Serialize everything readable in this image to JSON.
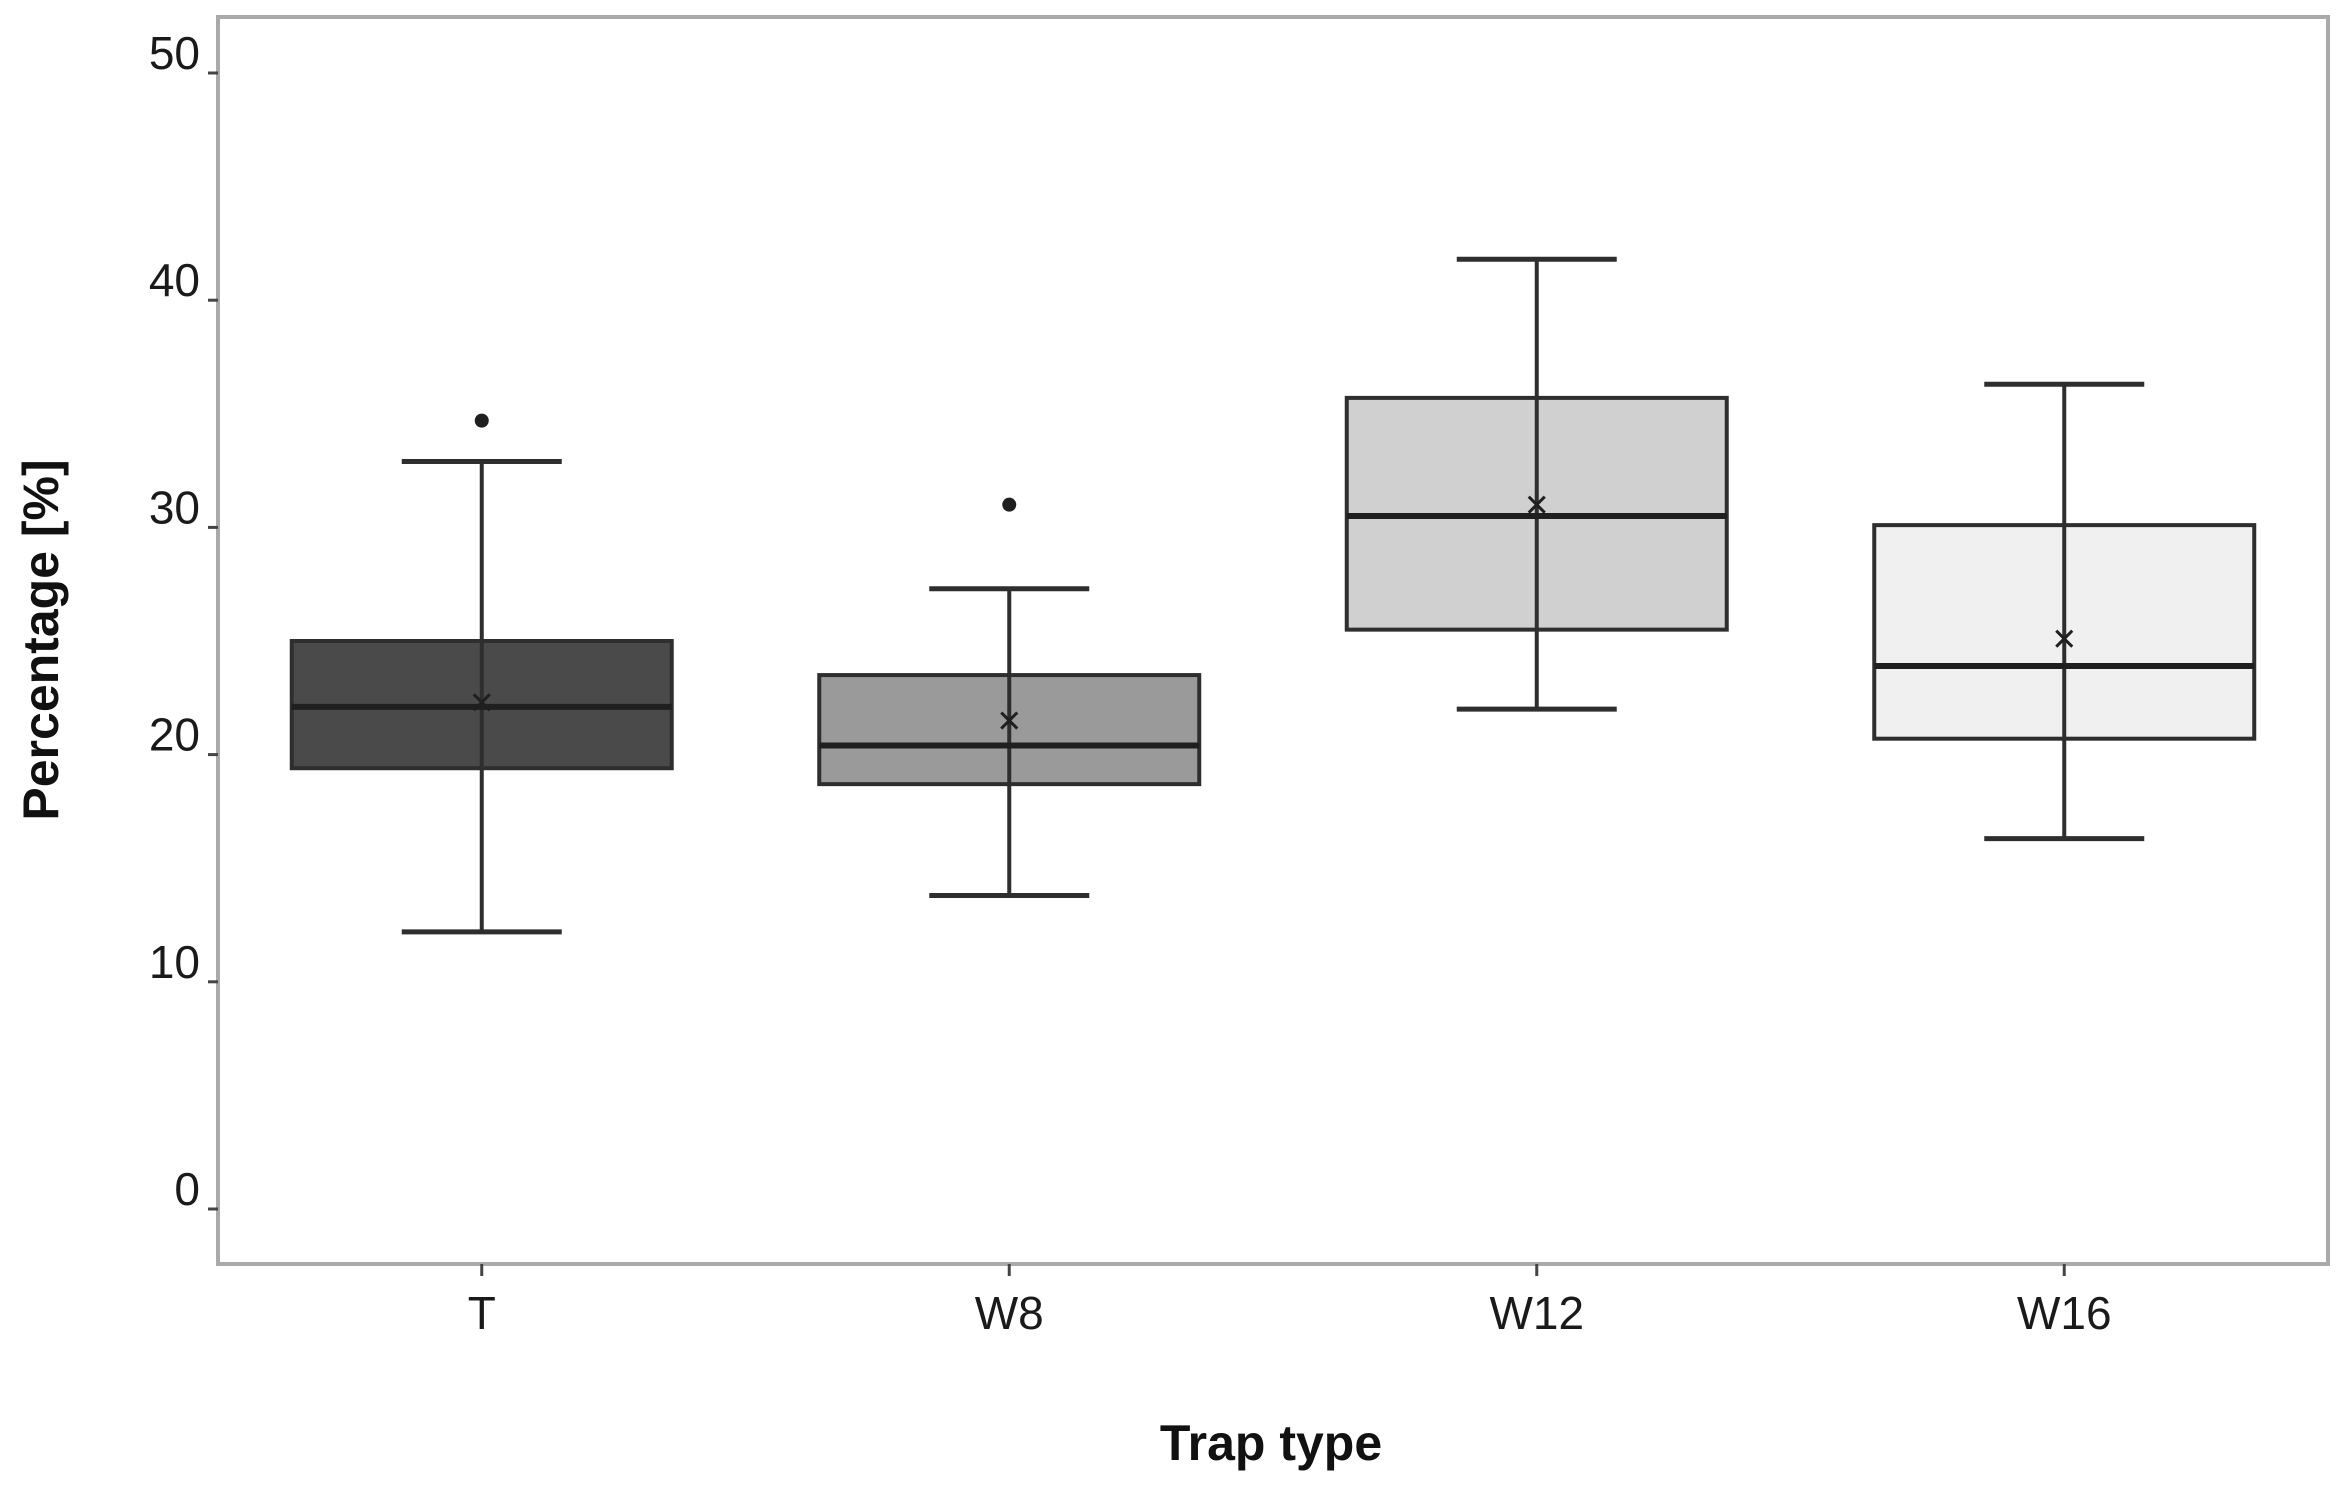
{
  "chart_data": {
    "type": "boxplot",
    "xlabel": "Trap type",
    "ylabel": "Percentage [%]",
    "ylim": [
      -2,
      53
    ],
    "yticks": [
      0,
      10,
      20,
      30,
      40,
      50
    ],
    "grid": false,
    "categories": [
      "T",
      "W8",
      "W12",
      "W16"
    ],
    "boxes": [
      {
        "category": "T",
        "whisker_low": 12.2,
        "q1": 19.4,
        "median": 22.1,
        "q3": 25.0,
        "whisker_high": 32.9,
        "mean": 22.3,
        "outliers": [
          34.7
        ],
        "fill": "#4a4a4a"
      },
      {
        "category": "W8",
        "whisker_low": 13.8,
        "q1": 18.7,
        "median": 20.4,
        "q3": 23.5,
        "whisker_high": 27.3,
        "mean": 21.5,
        "outliers": [
          31.0
        ],
        "fill": "#9a9a9a"
      },
      {
        "category": "W12",
        "whisker_low": 22.0,
        "q1": 25.5,
        "median": 30.5,
        "q3": 35.7,
        "whisker_high": 41.8,
        "mean": 31.0,
        "outliers": [],
        "fill": "#d0d0d0"
      },
      {
        "category": "W16",
        "whisker_low": 16.3,
        "q1": 20.7,
        "median": 23.9,
        "q3": 30.1,
        "whisker_high": 36.3,
        "mean": 25.1,
        "outliers": [],
        "fill": "#f0f0f0"
      }
    ]
  }
}
